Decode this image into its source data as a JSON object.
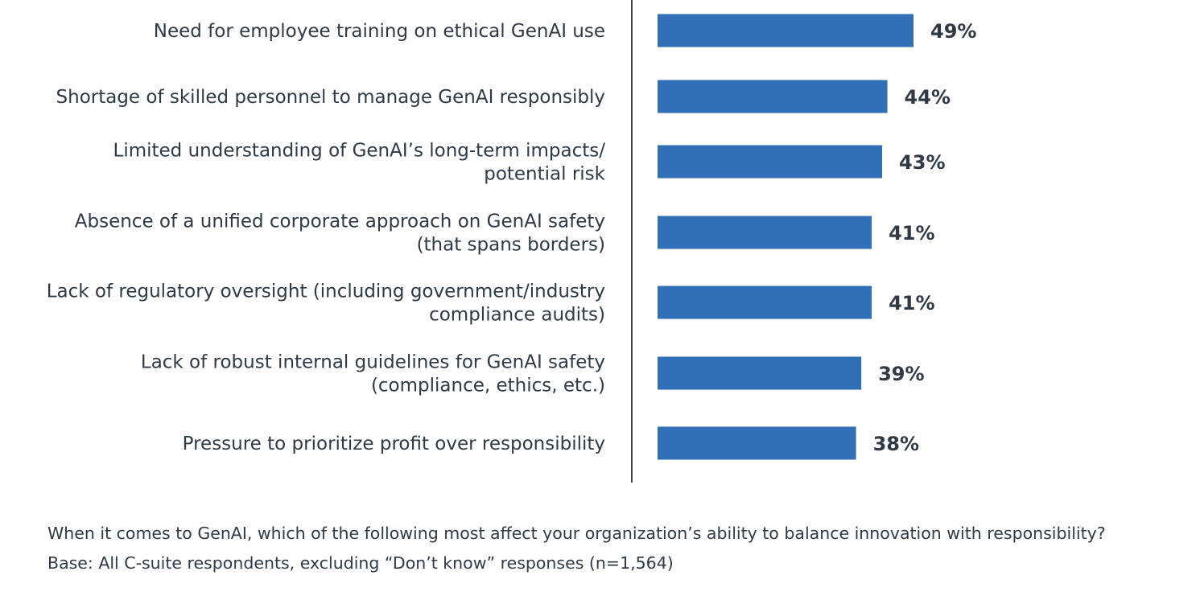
{
  "chart_data": {
    "type": "bar",
    "orientation": "horizontal",
    "categories": [
      [
        "Need for employee training on ethical GenAI use"
      ],
      [
        "Shortage of skilled personnel to manage GenAI responsibly"
      ],
      [
        "Limited understanding of GenAI’s long-term impacts/",
        "potential risk"
      ],
      [
        "Absence of a unified corporate approach on GenAI safety",
        "(that spans borders)"
      ],
      [
        "Lack of regulatory oversight (including government/industry",
        "compliance audits)"
      ],
      [
        "Lack of robust internal guidelines for GenAI safety",
        "(compliance, ethics, etc.)"
      ],
      [
        "Pressure to prioritize profit over responsibility"
      ]
    ],
    "values": [
      49,
      44,
      43,
      41,
      41,
      39,
      38
    ],
    "value_labels": [
      "49%",
      "44%",
      "43%",
      "41%",
      "41%",
      "39%",
      "38%"
    ],
    "unit": "%",
    "xlim": [
      0,
      100
    ],
    "bar_color": "#316fb6",
    "axis_color": "#3d4650",
    "grid": false,
    "legend": null
  },
  "notes": {
    "question": "When it comes to GenAI, which of the following most affect your organization’s ability to balance innovation with responsibility?",
    "base": "Base: All C-suite respondents, excluding “Don’t know” responses (n=1,564)"
  }
}
